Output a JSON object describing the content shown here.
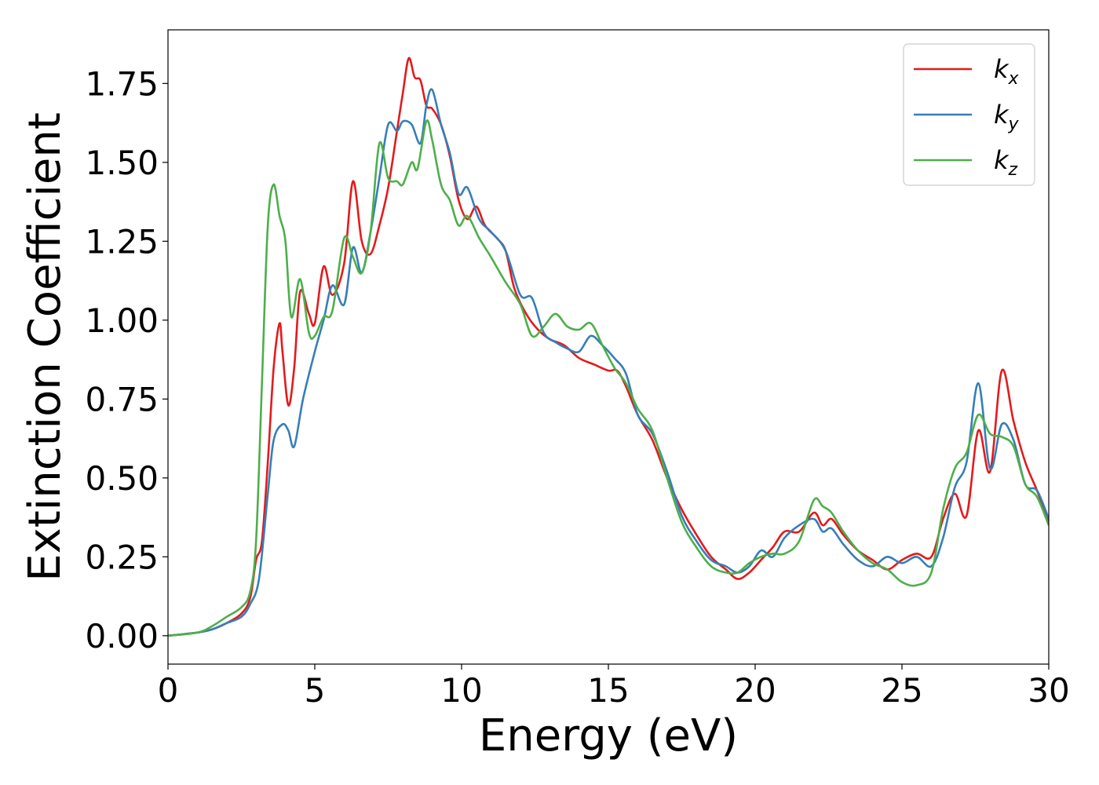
{
  "chart_data": {
    "type": "line",
    "xlabel": "Energy (eV)",
    "ylabel": "Extinction Coefficient",
    "xlim": [
      0,
      30
    ],
    "ylim": [
      -0.09,
      1.92
    ],
    "x_ticks": [
      0,
      5,
      10,
      15,
      20,
      25,
      30
    ],
    "x_tick_labels": [
      "0",
      "5",
      "10",
      "15",
      "20",
      "25",
      "30"
    ],
    "y_ticks": [
      0,
      0.25,
      0.5,
      0.75,
      1.0,
      1.25,
      1.5,
      1.75
    ],
    "y_tick_labels": [
      "0.00",
      "0.25",
      "0.50",
      "0.75",
      "1.00",
      "1.25",
      "1.50",
      "1.75"
    ],
    "grid": false,
    "legend_position": "top-right",
    "series": [
      {
        "name": "k_x",
        "label_main": "k",
        "label_sub": "x",
        "color": "#e41a1c",
        "points": [
          [
            0,
            0.0
          ],
          [
            1,
            0.01
          ],
          [
            1.5,
            0.02
          ],
          [
            2,
            0.04
          ],
          [
            2.5,
            0.07
          ],
          [
            2.8,
            0.12
          ],
          [
            3.0,
            0.24
          ],
          [
            3.2,
            0.3
          ],
          [
            3.4,
            0.55
          ],
          [
            3.6,
            0.85
          ],
          [
            3.8,
            0.99
          ],
          [
            3.9,
            0.9
          ],
          [
            4.1,
            0.73
          ],
          [
            4.3,
            0.85
          ],
          [
            4.5,
            1.09
          ],
          [
            4.8,
            1.02
          ],
          [
            5.0,
            0.99
          ],
          [
            5.3,
            1.17
          ],
          [
            5.6,
            1.08
          ],
          [
            6.0,
            1.18
          ],
          [
            6.3,
            1.44
          ],
          [
            6.6,
            1.25
          ],
          [
            6.9,
            1.21
          ],
          [
            7.2,
            1.3
          ],
          [
            7.5,
            1.42
          ],
          [
            7.8,
            1.6
          ],
          [
            8.0,
            1.72
          ],
          [
            8.2,
            1.83
          ],
          [
            8.4,
            1.77
          ],
          [
            8.6,
            1.76
          ],
          [
            8.8,
            1.68
          ],
          [
            9.0,
            1.67
          ],
          [
            9.3,
            1.62
          ],
          [
            9.6,
            1.52
          ],
          [
            9.9,
            1.38
          ],
          [
            10.2,
            1.32
          ],
          [
            10.5,
            1.36
          ],
          [
            10.8,
            1.3
          ],
          [
            11.2,
            1.26
          ],
          [
            11.5,
            1.22
          ],
          [
            11.8,
            1.1
          ],
          [
            12.2,
            1.02
          ],
          [
            12.6,
            0.97
          ],
          [
            13.0,
            0.94
          ],
          [
            13.5,
            0.92
          ],
          [
            14.0,
            0.88
          ],
          [
            14.5,
            0.86
          ],
          [
            15.0,
            0.84
          ],
          [
            15.3,
            0.84
          ],
          [
            15.6,
            0.79
          ],
          [
            16.0,
            0.7
          ],
          [
            16.5,
            0.62
          ],
          [
            17.0,
            0.5
          ],
          [
            17.5,
            0.4
          ],
          [
            18.0,
            0.32
          ],
          [
            18.5,
            0.25
          ],
          [
            19.0,
            0.21
          ],
          [
            19.4,
            0.18
          ],
          [
            19.8,
            0.2
          ],
          [
            20.2,
            0.24
          ],
          [
            20.6,
            0.28
          ],
          [
            21.0,
            0.33
          ],
          [
            21.5,
            0.33
          ],
          [
            22.0,
            0.39
          ],
          [
            22.3,
            0.35
          ],
          [
            22.6,
            0.37
          ],
          [
            23.0,
            0.32
          ],
          [
            23.5,
            0.27
          ],
          [
            24.0,
            0.24
          ],
          [
            24.5,
            0.21
          ],
          [
            25.0,
            0.24
          ],
          [
            25.5,
            0.26
          ],
          [
            26.0,
            0.25
          ],
          [
            26.4,
            0.37
          ],
          [
            26.8,
            0.45
          ],
          [
            27.2,
            0.38
          ],
          [
            27.6,
            0.65
          ],
          [
            28.0,
            0.52
          ],
          [
            28.4,
            0.84
          ],
          [
            28.8,
            0.68
          ],
          [
            29.2,
            0.55
          ],
          [
            29.6,
            0.46
          ],
          [
            30.0,
            0.36
          ]
        ]
      },
      {
        "name": "k_y",
        "label_main": "k",
        "label_sub": "y",
        "color": "#377eb8",
        "points": [
          [
            0,
            0.0
          ],
          [
            1,
            0.01
          ],
          [
            1.5,
            0.02
          ],
          [
            2,
            0.04
          ],
          [
            2.5,
            0.06
          ],
          [
            2.8,
            0.1
          ],
          [
            3.1,
            0.18
          ],
          [
            3.4,
            0.45
          ],
          [
            3.6,
            0.62
          ],
          [
            3.9,
            0.67
          ],
          [
            4.1,
            0.65
          ],
          [
            4.3,
            0.6
          ],
          [
            4.6,
            0.75
          ],
          [
            5.0,
            0.9
          ],
          [
            5.3,
            1.0
          ],
          [
            5.6,
            1.11
          ],
          [
            6.0,
            1.05
          ],
          [
            6.3,
            1.23
          ],
          [
            6.6,
            1.15
          ],
          [
            6.9,
            1.28
          ],
          [
            7.2,
            1.45
          ],
          [
            7.5,
            1.62
          ],
          [
            7.8,
            1.6
          ],
          [
            8.0,
            1.63
          ],
          [
            8.3,
            1.62
          ],
          [
            8.6,
            1.56
          ],
          [
            8.8,
            1.68
          ],
          [
            9.0,
            1.73
          ],
          [
            9.3,
            1.62
          ],
          [
            9.6,
            1.53
          ],
          [
            9.9,
            1.4
          ],
          [
            10.2,
            1.42
          ],
          [
            10.6,
            1.32
          ],
          [
            11.0,
            1.28
          ],
          [
            11.5,
            1.22
          ],
          [
            12.0,
            1.08
          ],
          [
            12.4,
            1.07
          ],
          [
            12.8,
            0.96
          ],
          [
            13.2,
            0.93
          ],
          [
            13.6,
            0.91
          ],
          [
            14.0,
            0.9
          ],
          [
            14.4,
            0.95
          ],
          [
            14.8,
            0.92
          ],
          [
            15.2,
            0.88
          ],
          [
            15.6,
            0.83
          ],
          [
            16.0,
            0.7
          ],
          [
            16.5,
            0.64
          ],
          [
            17.0,
            0.52
          ],
          [
            17.5,
            0.38
          ],
          [
            18.0,
            0.3
          ],
          [
            18.5,
            0.24
          ],
          [
            19.0,
            0.22
          ],
          [
            19.4,
            0.2
          ],
          [
            19.8,
            0.22
          ],
          [
            20.2,
            0.27
          ],
          [
            20.6,
            0.25
          ],
          [
            21.0,
            0.31
          ],
          [
            21.5,
            0.35
          ],
          [
            22.0,
            0.37
          ],
          [
            22.3,
            0.33
          ],
          [
            22.6,
            0.34
          ],
          [
            23.0,
            0.29
          ],
          [
            23.5,
            0.24
          ],
          [
            24.0,
            0.22
          ],
          [
            24.5,
            0.25
          ],
          [
            25.0,
            0.23
          ],
          [
            25.5,
            0.25
          ],
          [
            26.0,
            0.22
          ],
          [
            26.4,
            0.31
          ],
          [
            26.8,
            0.47
          ],
          [
            27.2,
            0.55
          ],
          [
            27.6,
            0.8
          ],
          [
            28.0,
            0.53
          ],
          [
            28.4,
            0.67
          ],
          [
            28.8,
            0.62
          ],
          [
            29.2,
            0.48
          ],
          [
            29.6,
            0.46
          ],
          [
            30.0,
            0.37
          ]
        ]
      },
      {
        "name": "k_z",
        "label_main": "k",
        "label_sub": "z",
        "color": "#4daf4a",
        "points": [
          [
            0,
            0.0
          ],
          [
            1,
            0.01
          ],
          [
            1.5,
            0.03
          ],
          [
            2,
            0.06
          ],
          [
            2.5,
            0.09
          ],
          [
            2.8,
            0.14
          ],
          [
            3.0,
            0.3
          ],
          [
            3.2,
            0.8
          ],
          [
            3.4,
            1.3
          ],
          [
            3.6,
            1.43
          ],
          [
            3.8,
            1.33
          ],
          [
            4.0,
            1.25
          ],
          [
            4.2,
            1.01
          ],
          [
            4.5,
            1.13
          ],
          [
            4.8,
            0.96
          ],
          [
            5.0,
            0.95
          ],
          [
            5.3,
            1.01
          ],
          [
            5.6,
            1.03
          ],
          [
            6.0,
            1.26
          ],
          [
            6.3,
            1.2
          ],
          [
            6.6,
            1.15
          ],
          [
            6.9,
            1.28
          ],
          [
            7.2,
            1.56
          ],
          [
            7.5,
            1.45
          ],
          [
            7.8,
            1.44
          ],
          [
            8.0,
            1.43
          ],
          [
            8.3,
            1.5
          ],
          [
            8.5,
            1.48
          ],
          [
            8.8,
            1.63
          ],
          [
            9.0,
            1.57
          ],
          [
            9.3,
            1.43
          ],
          [
            9.6,
            1.38
          ],
          [
            9.9,
            1.3
          ],
          [
            10.2,
            1.33
          ],
          [
            10.6,
            1.26
          ],
          [
            11.0,
            1.2
          ],
          [
            11.5,
            1.12
          ],
          [
            12.0,
            1.05
          ],
          [
            12.4,
            0.95
          ],
          [
            12.8,
            0.98
          ],
          [
            13.2,
            1.02
          ],
          [
            13.6,
            0.98
          ],
          [
            14.0,
            0.97
          ],
          [
            14.4,
            0.99
          ],
          [
            14.8,
            0.92
          ],
          [
            15.2,
            0.85
          ],
          [
            15.6,
            0.8
          ],
          [
            16.0,
            0.72
          ],
          [
            16.5,
            0.65
          ],
          [
            17.0,
            0.5
          ],
          [
            17.5,
            0.36
          ],
          [
            18.0,
            0.28
          ],
          [
            18.5,
            0.22
          ],
          [
            19.0,
            0.2
          ],
          [
            19.4,
            0.2
          ],
          [
            19.8,
            0.23
          ],
          [
            20.2,
            0.25
          ],
          [
            20.6,
            0.26
          ],
          [
            21.0,
            0.26
          ],
          [
            21.5,
            0.3
          ],
          [
            22.0,
            0.43
          ],
          [
            22.3,
            0.41
          ],
          [
            22.6,
            0.39
          ],
          [
            23.0,
            0.33
          ],
          [
            23.5,
            0.27
          ],
          [
            24.0,
            0.23
          ],
          [
            24.5,
            0.21
          ],
          [
            25.0,
            0.17
          ],
          [
            25.5,
            0.16
          ],
          [
            26.0,
            0.2
          ],
          [
            26.4,
            0.4
          ],
          [
            26.8,
            0.53
          ],
          [
            27.2,
            0.58
          ],
          [
            27.6,
            0.7
          ],
          [
            28.0,
            0.64
          ],
          [
            28.4,
            0.63
          ],
          [
            28.8,
            0.6
          ],
          [
            29.2,
            0.48
          ],
          [
            29.6,
            0.44
          ],
          [
            30.0,
            0.35
          ]
        ]
      }
    ]
  }
}
